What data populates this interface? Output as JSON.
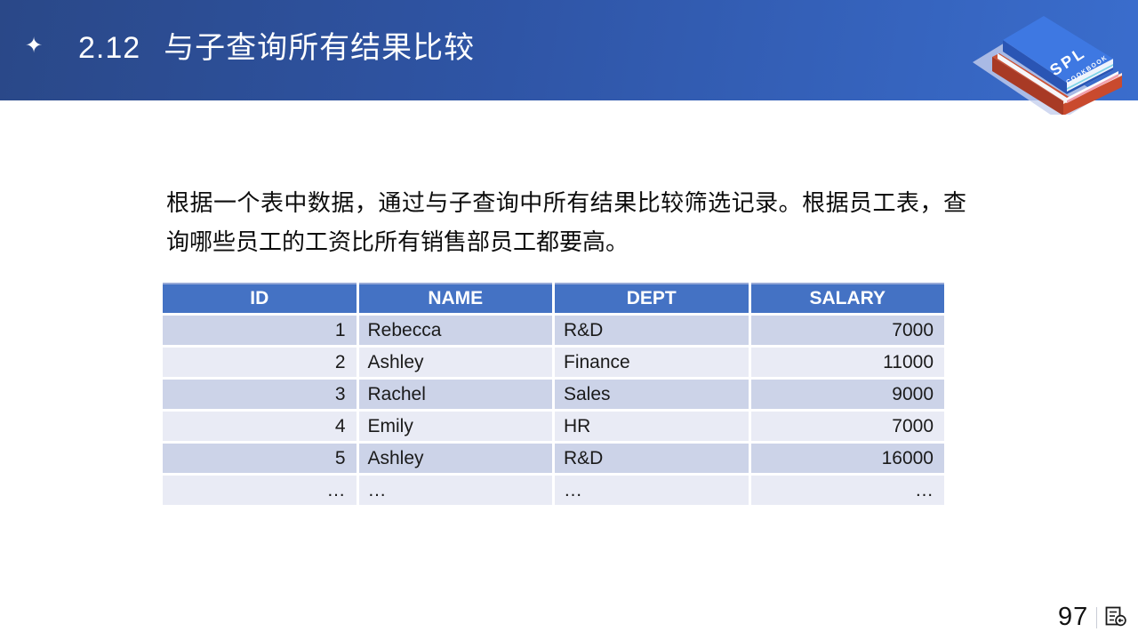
{
  "slide": {
    "header": {
      "bullet_glyph": "✦",
      "bullet_icon": "four-pointed-star-icon",
      "section_number": "2.12",
      "title": "与子查询所有结果比较",
      "gradient_left": "#2a4888",
      "gradient_right": "#3a6dcd"
    },
    "logo": {
      "top_label": "SPL",
      "sub_label": "COOKBOOK",
      "book_top_color": "#3e78e2",
      "book_bottom_color": "#c94a2e"
    },
    "body": {
      "paragraph": "根据一个表中数据，通过与子查询中所有结果比较筛选记录。根据员工表，查询哪些员工的工资比所有销售部员工都要高。"
    },
    "table": {
      "header_bg": "#4472c4",
      "row_dark": "#ccd3e8",
      "row_light": "#e9ebf5",
      "columns": [
        "ID",
        "NAME",
        "DEPT",
        "SALARY"
      ],
      "rows": [
        [
          "1",
          "Rebecca",
          "R&D",
          "7000"
        ],
        [
          "2",
          "Ashley",
          "Finance",
          "11000"
        ],
        [
          "3",
          "Rachel",
          "Sales",
          "9000"
        ],
        [
          "4",
          "Emily",
          "HR",
          "7000"
        ],
        [
          "5",
          "Ashley",
          "R&D",
          "16000"
        ],
        [
          "…",
          "…",
          "…",
          "…"
        ]
      ]
    },
    "footer": {
      "page_number": "97",
      "icon": "return-to-contents-icon"
    }
  }
}
